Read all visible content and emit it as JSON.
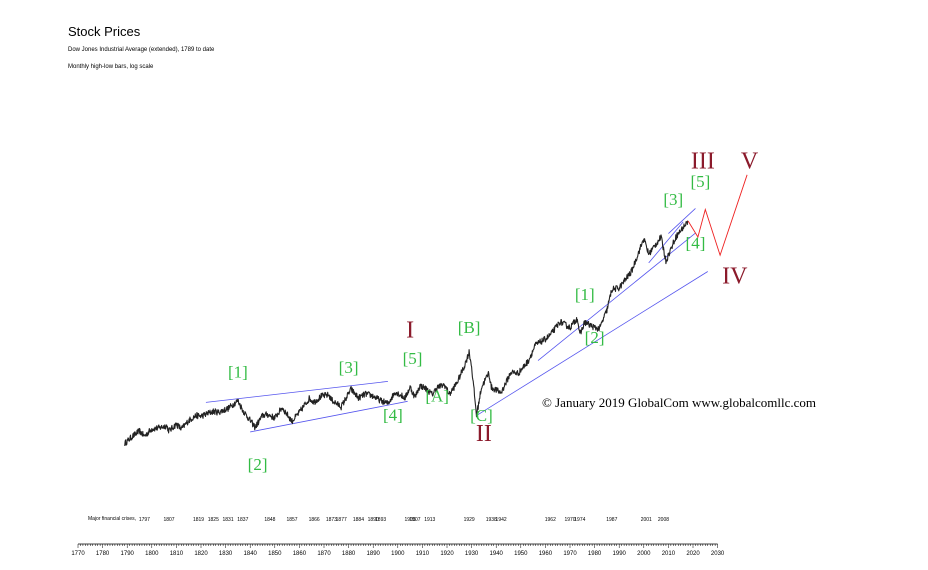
{
  "header": {
    "title": "Stock Prices",
    "subtitle": "Dow Jones Industrial Average (extended), 1789 to date",
    "note": "Monthly high-low bars, log scale"
  },
  "copyright": "© January 2019 GlobalCom www.globalcomllc.com",
  "colors": {
    "price": "#222222",
    "trendline": "#5555ee",
    "projection": "#ee2222",
    "minor_wave": "#33bb44",
    "major_wave": "#8b1a2b",
    "axis": "#000000"
  },
  "chart_data": {
    "type": "line",
    "title": "Stock Prices",
    "subtitle": "Dow Jones Industrial Average (extended), 1789 to date",
    "scale": "log",
    "xlim": [
      1770,
      2030
    ],
    "x_ticks": [
      1770,
      1780,
      1790,
      1800,
      1810,
      1820,
      1830,
      1840,
      1850,
      1860,
      1870,
      1880,
      1890,
      1900,
      1910,
      1920,
      1930,
      1940,
      1950,
      1960,
      1970,
      1980,
      1990,
      2000,
      2010,
      2020,
      2030
    ],
    "grid": false,
    "series": [
      {
        "values": [
          [
            1789,
            1.02
          ],
          [
            1792,
            1.28
          ],
          [
            1795,
            1.55
          ],
          [
            1797,
            1.3
          ],
          [
            1800,
            1.66
          ],
          [
            1803,
            1.72
          ],
          [
            1806,
            1.85
          ],
          [
            1807,
            1.55
          ],
          [
            1810,
            1.95
          ],
          [
            1812,
            1.65
          ],
          [
            1815,
            2.2
          ],
          [
            1818,
            2.6
          ],
          [
            1820,
            2.55
          ],
          [
            1825,
            3.0
          ],
          [
            1827,
            2.9
          ],
          [
            1831,
            3.3
          ],
          [
            1835,
            4.3
          ],
          [
            1837,
            3.1
          ],
          [
            1840,
            2.2
          ],
          [
            1842,
            1.75
          ],
          [
            1845,
            2.6
          ],
          [
            1847,
            2.7
          ],
          [
            1850,
            2.4
          ],
          [
            1853,
            3.4
          ],
          [
            1857,
            2.15
          ],
          [
            1860,
            2.9
          ],
          [
            1864,
            4.6
          ],
          [
            1866,
            4.1
          ],
          [
            1869,
            5.0
          ],
          [
            1872,
            5.2
          ],
          [
            1873,
            4.4
          ],
          [
            1877,
            3.5
          ],
          [
            1881,
            6.3
          ],
          [
            1884,
            4.7
          ],
          [
            1887,
            5.4
          ],
          [
            1890,
            5.0
          ],
          [
            1893,
            4.3
          ],
          [
            1896,
            3.9
          ],
          [
            1899,
            5.8
          ],
          [
            1903,
            4.7
          ],
          [
            1905,
            6.8
          ],
          [
            1907,
            4.8
          ],
          [
            1909,
            7.1
          ],
          [
            1911,
            6.6
          ],
          [
            1914,
            5.3
          ],
          [
            1916,
            6.7
          ],
          [
            1919,
            7.3
          ],
          [
            1921,
            5.3
          ],
          [
            1924,
            7.8
          ],
          [
            1927,
            13.5
          ],
          [
            1929,
            22.0
          ],
          [
            1930,
            13.5
          ],
          [
            1932,
            2.6
          ],
          [
            1934,
            6.7
          ],
          [
            1937,
            11.0
          ],
          [
            1938,
            6.7
          ],
          [
            1942,
            5.6
          ],
          [
            1946,
            11.2
          ],
          [
            1949,
            10.8
          ],
          [
            1953,
            16.2
          ],
          [
            1956,
            28.0
          ],
          [
            1960,
            34.0
          ],
          [
            1962,
            39.0
          ],
          [
            1966,
            61.0
          ],
          [
            1970,
            50.0
          ],
          [
            1973,
            69.0
          ],
          [
            1974,
            39.0
          ],
          [
            1976,
            60.0
          ],
          [
            1980,
            50.0
          ],
          [
            1982,
            48.0
          ],
          [
            1985,
            90.0
          ],
          [
            1987,
            180.0
          ],
          [
            1990,
            190.0
          ],
          [
            1995,
            330.0
          ],
          [
            2000,
            1000.0
          ],
          [
            2002,
            590.0
          ],
          [
            2007,
            1050.0
          ],
          [
            2009,
            470.0
          ],
          [
            2013,
            1050.0
          ],
          [
            2015,
            1300.0
          ],
          [
            2018,
            1800.0
          ]
        ]
      }
    ],
    "trendlines": [
      {
        "from": [
          1822,
          4.05
        ],
        "to": [
          1896,
          8.2
        ]
      },
      {
        "from": [
          1840,
          1.5
        ],
        "to": [
          1904,
          4.2
        ]
      },
      {
        "from": [
          1957,
          16.5
        ],
        "to": [
          2021,
          1200.0
        ]
      },
      {
        "from": [
          2002,
          440.0
        ],
        "to": [
          2016,
          1750.0
        ]
      },
      {
        "from": [
          2010,
          1180.0
        ],
        "to": [
          2021,
          2750.0
        ]
      },
      {
        "from": [
          1932,
          2.6
        ],
        "to": [
          2026,
          330.0
        ]
      }
    ],
    "projection": [
      [
        2018,
        1800.0
      ],
      [
        2022,
        1050.0
      ],
      [
        2025,
        2650.0
      ],
      [
        2031,
        570.0
      ],
      [
        2042,
        8500.0
      ]
    ],
    "annotations": [
      {
        "text": "[1]",
        "x": 1835,
        "y": 9.3,
        "color": "minor"
      },
      {
        "text": "[2]",
        "x": 1843,
        "y": 0.42,
        "color": "minor"
      },
      {
        "text": "[3]",
        "x": 1880,
        "y": 10.8,
        "color": "minor"
      },
      {
        "text": "[4]",
        "x": 1898,
        "y": 2.2,
        "color": "minor"
      },
      {
        "text": "[5]",
        "x": 1906,
        "y": 14.8,
        "color": "minor"
      },
      {
        "text": "[A]",
        "x": 1916,
        "y": 4.2,
        "color": "minor"
      },
      {
        "text": "[B]",
        "x": 1929,
        "y": 42.0,
        "color": "minor"
      },
      {
        "text": "[C]",
        "x": 1934,
        "y": 2.15,
        "color": "minor"
      },
      {
        "text": "[1]",
        "x": 1976,
        "y": 126.0,
        "color": "minor"
      },
      {
        "text": "[2]",
        "x": 1980,
        "y": 30.0,
        "color": "minor"
      },
      {
        "text": "[3]",
        "x": 2012,
        "y": 3100.0,
        "color": "minor"
      },
      {
        "text": "[4]",
        "x": 2021,
        "y": 720.0,
        "color": "minor"
      },
      {
        "text": "[5]",
        "x": 2023,
        "y": 5600.0,
        "color": "minor"
      },
      {
        "text": "I",
        "x": 1905,
        "y": 36.0,
        "color": "major"
      },
      {
        "text": "II",
        "x": 1935,
        "y": 1.1,
        "color": "major"
      },
      {
        "text": "III",
        "x": 2024,
        "y": 10500.0,
        "color": "major"
      },
      {
        "text": "IV",
        "x": 2037,
        "y": 220.0,
        "color": "major"
      },
      {
        "text": "V",
        "x": 2043,
        "y": 10500.0,
        "color": "major"
      }
    ],
    "crisis_label": "Major financial crises,",
    "crisis_years": [
      "1797",
      "1807",
      "1819",
      "1825",
      "1831",
      "1837",
      "1848",
      "1857",
      "1866",
      "1873",
      "1877",
      "1884",
      "1890",
      "1893",
      "1905",
      "1907",
      "1913",
      "1929",
      "1938",
      "1942",
      "1962",
      "1970",
      "1974",
      "1987",
      "2001",
      "2008"
    ]
  }
}
